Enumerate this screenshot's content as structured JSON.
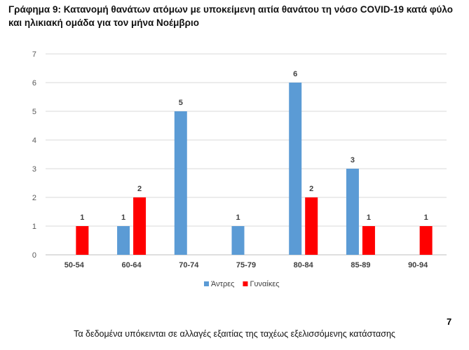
{
  "title_line1": "Γράφημα 9: Κατανομή θανάτων ατόμων με υποκείμενη αιτία θανάτου τη νόσο COVID-19 κατά φύλο",
  "title_line2": "και ηλικιακή ομάδα για τον μήνα Νοέμβριο",
  "footer": "Τα δεδομένα υπόκεινται σε αλλαγές εξαιτίας της ταχέως εξελισσόμενης κατάστασης",
  "page_number": "7",
  "chart_data": {
    "type": "bar",
    "categories": [
      "50-54",
      "60-64",
      "70-74",
      "75-79",
      "80-84",
      "85-89",
      "90-94"
    ],
    "series": [
      {
        "name": "Άντρες",
        "color": "#5b9bd5",
        "values": [
          0,
          1,
          5,
          1,
          6,
          3,
          0
        ]
      },
      {
        "name": "Γυναίκες",
        "color": "#ff0000",
        "values": [
          1,
          2,
          0,
          0,
          2,
          1,
          1
        ]
      }
    ],
    "ylim": [
      0,
      7
    ],
    "yticks": [
      0,
      1,
      2,
      3,
      4,
      5,
      6,
      7
    ],
    "grid": true,
    "legend_position": "bottom"
  }
}
